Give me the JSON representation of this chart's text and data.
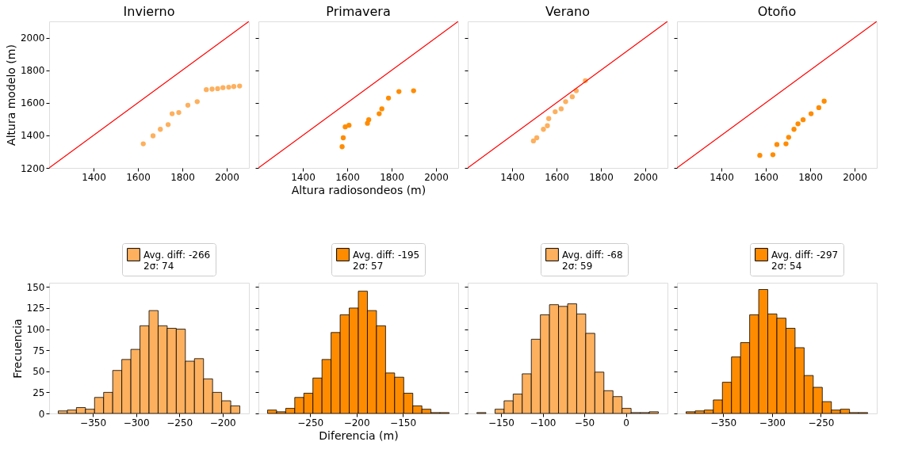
{
  "chart_data": [
    {
      "type": "scatter",
      "title": "Invierno",
      "ylabel": "Altura modelo (m)",
      "xlim": [
        1200,
        2100
      ],
      "ylim": [
        1200,
        2100
      ],
      "xticks": [
        1400,
        1600,
        1800,
        2000
      ],
      "yticks": [
        1200,
        1400,
        1600,
        1800,
        2000
      ],
      "grid": false,
      "series": [
        {
          "color": "#fdb05e",
          "marker": "circle",
          "x": [
            1624,
            1668,
            1701,
            1736,
            1754,
            1784,
            1825,
            1867,
            1908,
            1934,
            1959,
            1983,
            2009,
            2032,
            2058
          ],
          "values": [
            1348,
            1397,
            1437,
            1466,
            1533,
            1540,
            1585,
            1607,
            1681,
            1684,
            1687,
            1693,
            1696,
            1700,
            1703
          ]
        },
        {
          "type": "line",
          "color": "#ff0000",
          "x": [
            1200,
            2100
          ],
          "values": [
            1200,
            2100
          ]
        }
      ]
    },
    {
      "type": "scatter",
      "title": "Primavera",
      "xlabel": "Altura radiosondeos (m)",
      "xlim": [
        1200,
        2100
      ],
      "ylim": [
        1200,
        2100
      ],
      "xticks": [
        1400,
        1600,
        1800,
        2000
      ],
      "yticks": [
        1200,
        1400,
        1600,
        1800,
        2000
      ],
      "tick_labels": "x",
      "grid": false,
      "series": [
        {
          "color": "#ff8c00",
          "marker": "circle",
          "x": [
            1577,
            1582,
            1591,
            1608,
            1691,
            1697,
            1744,
            1756,
            1786,
            1833,
            1899
          ],
          "values": [
            1330,
            1385,
            1452,
            1462,
            1474,
            1496,
            1533,
            1563,
            1629,
            1669,
            1674
          ]
        },
        {
          "type": "line",
          "color": "#ff0000",
          "x": [
            1200,
            2100
          ],
          "values": [
            1200,
            2100
          ]
        }
      ]
    },
    {
      "type": "scatter",
      "title": "Verano",
      "xlim": [
        1200,
        2100
      ],
      "ylim": [
        1200,
        2100
      ],
      "xticks": [
        1400,
        1600,
        1800,
        2000
      ],
      "yticks": [
        1200,
        1400,
        1600,
        1800,
        2000
      ],
      "tick_labels": "x",
      "grid": false,
      "series": [
        {
          "color": "#fdb05e",
          "marker": "circle",
          "x": [
            1496,
            1511,
            1541,
            1559,
            1565,
            1594,
            1621,
            1641,
            1671,
            1689,
            1730
          ],
          "values": [
            1366,
            1385,
            1437,
            1459,
            1503,
            1545,
            1563,
            1607,
            1637,
            1674,
            1736
          ]
        },
        {
          "type": "line",
          "color": "#ff0000",
          "x": [
            1200,
            2100
          ],
          "values": [
            1200,
            2100
          ]
        }
      ]
    },
    {
      "type": "scatter",
      "title": "Otoño",
      "xlim": [
        1200,
        2100
      ],
      "ylim": [
        1200,
        2100
      ],
      "xticks": [
        1400,
        1600,
        1800,
        2000
      ],
      "yticks": [
        1200,
        1400,
        1600,
        1800,
        2000
      ],
      "tick_labels": "x",
      "grid": false,
      "series": [
        {
          "color": "#ff8c00",
          "marker": "circle",
          "x": [
            1573,
            1632,
            1650,
            1691,
            1703,
            1727,
            1745,
            1768,
            1804,
            1839,
            1863
          ],
          "values": [
            1277,
            1281,
            1344,
            1348,
            1388,
            1437,
            1471,
            1496,
            1533,
            1570,
            1610
          ]
        },
        {
          "type": "line",
          "color": "#ff0000",
          "x": [
            1200,
            2100
          ],
          "values": [
            1200,
            2100
          ]
        }
      ]
    },
    {
      "type": "histogram",
      "ylabel": "Frecuencia",
      "xlim": [
        -400.5,
        -169.5
      ],
      "ylim": [
        0,
        155
      ],
      "xticks": [
        -350,
        -300,
        -250,
        -200
      ],
      "yticks": [
        0,
        25,
        50,
        75,
        100,
        125,
        150
      ],
      "legend": "top right",
      "grid": false,
      "bins": [
        -390,
        -379.5,
        -369,
        -358.5,
        -348,
        -337.5,
        -327,
        -316.5,
        -306,
        -295.5,
        -285,
        -274.5,
        -264,
        -253.5,
        -243,
        -232.5,
        -222,
        -211.5,
        -201,
        -190.5,
        -180
      ],
      "series": [
        {
          "name": "Avg. diff: -266\n 2σ: 74",
          "color": "#fdb05e",
          "values": [
            3,
            4,
            7,
            5,
            19,
            25,
            51,
            64,
            76,
            104,
            122,
            104,
            101,
            100,
            62,
            65,
            41,
            25,
            15,
            9
          ]
        }
      ]
    },
    {
      "type": "histogram",
      "xlabel": "Diferencia (m)",
      "xlim": [
        -305.8,
        -90.2
      ],
      "ylim": [
        0,
        155
      ],
      "xticks": [
        -250,
        -200,
        -150
      ],
      "yticks": [
        0,
        25,
        50,
        75,
        100,
        125,
        150
      ],
      "tick_labels": "x",
      "legend": "top right",
      "grid": false,
      "bins": [
        -296,
        -286.2,
        -276.4,
        -266.6,
        -256.8,
        -247,
        -237.2,
        -227.4,
        -217.6,
        -207.8,
        -198,
        -188.2,
        -178.4,
        -168.6,
        -158.8,
        -149,
        -139.2,
        -129.4,
        -119.6,
        -109.8,
        -100
      ],
      "series": [
        {
          "name": "Avg. diff: -195\n 2σ: 57",
          "color": "#ff8c00",
          "values": [
            4,
            2,
            6,
            19,
            24,
            42,
            64,
            96,
            117,
            125,
            145,
            122,
            104,
            48,
            43,
            24,
            9,
            5,
            1,
            1
          ]
        }
      ]
    },
    {
      "type": "histogram",
      "xlim": [
        -190,
        50
      ],
      "ylim": [
        0,
        155
      ],
      "xticks": [
        -150,
        -100,
        -50,
        0
      ],
      "yticks": [
        0,
        25,
        50,
        75,
        100,
        125,
        150
      ],
      "tick_labels": "x",
      "legend": "top right",
      "grid": false,
      "bins": [
        -179,
        -168.1,
        -157.2,
        -146.3,
        -135.4,
        -124.5,
        -113.6,
        -102.7,
        -91.8,
        -80.9,
        -70,
        -59.1,
        -48.2,
        -37.3,
        -26.4,
        -15.5,
        -4.6,
        6.3,
        17.2,
        28.1,
        39
      ],
      "series": [
        {
          "name": "Avg. diff: -68\n 2σ: 59",
          "color": "#fdb05e",
          "values": [
            1,
            0,
            5,
            15,
            23,
            47,
            88,
            117,
            129,
            127,
            130,
            118,
            95,
            49,
            27,
            20,
            6,
            1,
            1,
            2
          ]
        }
      ]
    },
    {
      "type": "histogram",
      "xlim": [
        -397.3,
        -192.7
      ],
      "ylim": [
        0,
        155
      ],
      "xticks": [
        -350,
        -300,
        -250
      ],
      "yticks": [
        0,
        25,
        50,
        75,
        100,
        125,
        150
      ],
      "tick_labels": "x",
      "legend": "top right",
      "grid": false,
      "bins": [
        -388,
        -378.7,
        -369.4,
        -360.1,
        -350.8,
        -341.5,
        -332.2,
        -322.9,
        -313.6,
        -304.3,
        -295,
        -285.7,
        -276.4,
        -267.1,
        -257.8,
        -248.5,
        -239.2,
        -229.9,
        -220.6,
        -211.3,
        -202
      ],
      "series": [
        {
          "name": "Avg. diff: -297\n 2σ: 54",
          "color": "#ff8c00",
          "values": [
            2,
            3,
            4,
            16,
            37,
            67,
            84,
            117,
            147,
            118,
            113,
            101,
            78,
            45,
            31,
            14,
            4,
            5,
            1,
            1
          ]
        }
      ]
    }
  ]
}
